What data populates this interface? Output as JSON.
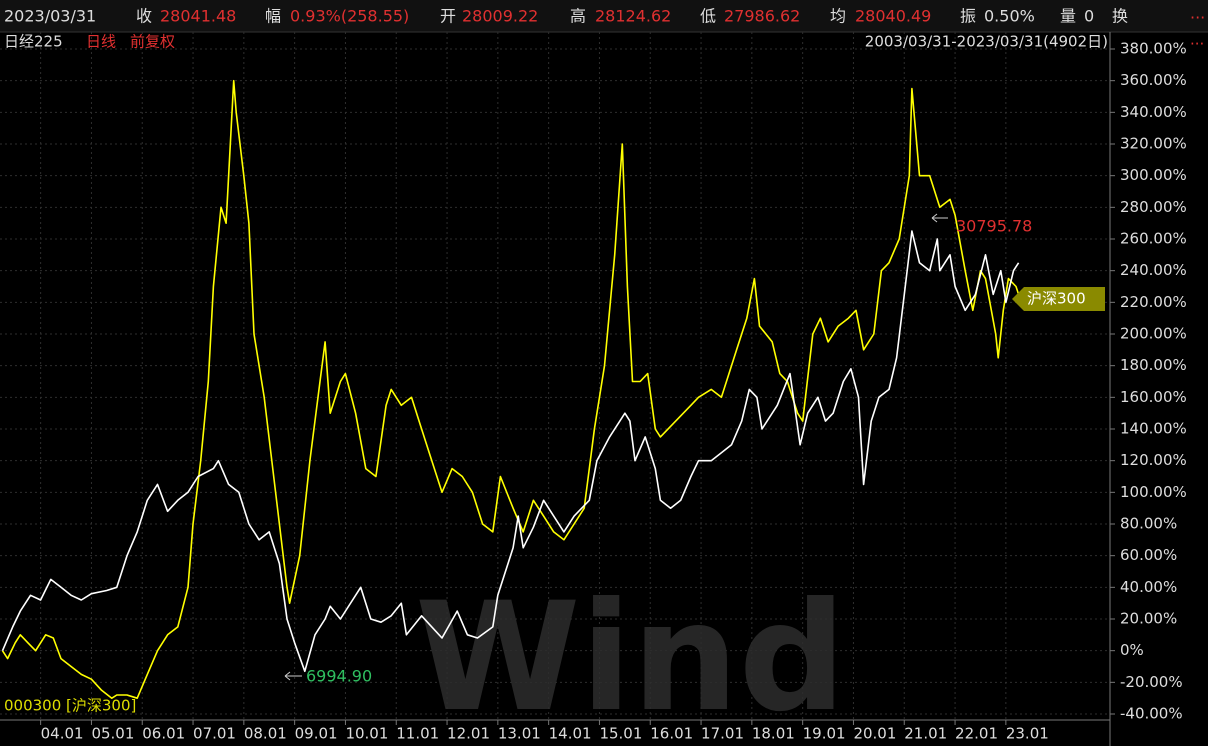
{
  "header": {
    "date": "2023/03/31",
    "fields": [
      {
        "name": "收",
        "value": "28041.48"
      },
      {
        "name": "幅",
        "value": "0.93%(258.55)"
      },
      {
        "name": "开",
        "value": "28009.22"
      },
      {
        "name": "高",
        "value": "28124.62"
      },
      {
        "name": "低",
        "value": "27986.62"
      },
      {
        "name": "均",
        "value": "28040.49"
      },
      {
        "name": "振",
        "value": "0.50%"
      },
      {
        "name": "量",
        "value": "0"
      },
      {
        "name": "换"
      }
    ],
    "more": "...",
    "instrument": "日经225",
    "period": "日线",
    "adjust": "前复权",
    "range": "2003/03/31-2023/03/31(4902日)"
  },
  "chart_data": {
    "type": "line",
    "compare_label": "000300 [沪深300]",
    "tag": "沪深300",
    "max_label": "30795.78",
    "min_label": "6994.90",
    "watermark": "Wind",
    "grid": true,
    "xlim": [
      2003.2,
      2025.05
    ],
    "xticks": [
      {
        "value": 2004,
        "label": "04.01"
      },
      {
        "value": 2005,
        "label": "05.01"
      },
      {
        "value": 2006,
        "label": "06.01"
      },
      {
        "value": 2007,
        "label": "07.01"
      },
      {
        "value": 2008,
        "label": "08.01"
      },
      {
        "value": 2009,
        "label": "09.01"
      },
      {
        "value": 2010,
        "label": "10.01"
      },
      {
        "value": 2011,
        "label": "11.01"
      },
      {
        "value": 2012,
        "label": "12.01"
      },
      {
        "value": 2013,
        "label": "13.01"
      },
      {
        "value": 2014,
        "label": "14.01"
      },
      {
        "value": 2015,
        "label": "15.01"
      },
      {
        "value": 2016,
        "label": "16.01"
      },
      {
        "value": 2017,
        "label": "17.01"
      },
      {
        "value": 2018,
        "label": "18.01"
      },
      {
        "value": 2019,
        "label": "19.01"
      },
      {
        "value": 2020,
        "label": "20.01"
      },
      {
        "value": 2021,
        "label": "21.01"
      },
      {
        "value": 2022,
        "label": "22.01"
      },
      {
        "value": 2023,
        "label": "23.01"
      }
    ],
    "ylim": [
      -40,
      380
    ],
    "yticks": [
      {
        "value": -40,
        "label": "-40.00%"
      },
      {
        "value": -20,
        "label": "-20.00%"
      },
      {
        "value": 0,
        "label": "0%"
      },
      {
        "value": 20,
        "label": "20.00%"
      },
      {
        "value": 40,
        "label": "40.00%"
      },
      {
        "value": 60,
        "label": "60.00%"
      },
      {
        "value": 80,
        "label": "80.00%"
      },
      {
        "value": 100,
        "label": "100.00%"
      },
      {
        "value": 120,
        "label": "120.00%"
      },
      {
        "value": 140,
        "label": "140.00%"
      },
      {
        "value": 160,
        "label": "160.00%"
      },
      {
        "value": 180,
        "label": "180.00%"
      },
      {
        "value": 200,
        "label": "200.00%"
      },
      {
        "value": 220,
        "label": "220.00%"
      },
      {
        "value": 240,
        "label": "240.00%"
      },
      {
        "value": 260,
        "label": "260.00%"
      },
      {
        "value": 280,
        "label": "280.00%"
      },
      {
        "value": 300,
        "label": "300.00%"
      },
      {
        "value": 320,
        "label": "320.00%"
      },
      {
        "value": 340,
        "label": "340.00%"
      },
      {
        "value": 360,
        "label": "360.00%"
      },
      {
        "value": 380,
        "label": "380.00%"
      }
    ],
    "series": [
      {
        "name": "日经225",
        "color": "#ffffff",
        "x": [
          2003.25,
          2003.45,
          2003.6,
          2003.8,
          2004.0,
          2004.2,
          2004.4,
          2004.6,
          2004.8,
          2005.0,
          2005.3,
          2005.5,
          2005.7,
          2005.9,
          2006.1,
          2006.3,
          2006.5,
          2006.7,
          2006.9,
          2007.1,
          2007.4,
          2007.5,
          2007.7,
          2007.9,
          2008.1,
          2008.3,
          2008.5,
          2008.7,
          2008.85,
          2009.0,
          2009.2,
          2009.4,
          2009.6,
          2009.7,
          2009.9,
          2010.2,
          2010.3,
          2010.5,
          2010.7,
          2010.9,
          2011.1,
          2011.2,
          2011.5,
          2011.7,
          2011.9,
          2012.2,
          2012.4,
          2012.6,
          2012.9,
          2013.0,
          2013.3,
          2013.4,
          2013.5,
          2013.7,
          2013.9,
          2014.1,
          2014.3,
          2014.5,
          2014.8,
          2014.95,
          2015.2,
          2015.5,
          2015.6,
          2015.7,
          2015.9,
          2016.1,
          2016.2,
          2016.4,
          2016.6,
          2016.8,
          2016.95,
          2017.2,
          2017.4,
          2017.6,
          2017.8,
          2017.95,
          2018.1,
          2018.2,
          2018.5,
          2018.75,
          2018.95,
          2019.1,
          2019.3,
          2019.45,
          2019.6,
          2019.8,
          2019.95,
          2020.1,
          2020.2,
          2020.35,
          2020.5,
          2020.7,
          2020.85,
          2021.0,
          2021.15,
          2021.3,
          2021.5,
          2021.65,
          2021.7,
          2021.9,
          2022.0,
          2022.2,
          2022.4,
          2022.6,
          2022.75,
          2022.9,
          2023.0,
          2023.15,
          2023.25
        ],
        "values": [
          0,
          15,
          25,
          35,
          32,
          45,
          40,
          35,
          32,
          36,
          38,
          40,
          60,
          75,
          95,
          105,
          88,
          95,
          100,
          110,
          115,
          120,
          105,
          100,
          80,
          70,
          75,
          55,
          20,
          5,
          -13,
          10,
          20,
          28,
          20,
          35,
          40,
          20,
          18,
          22,
          30,
          10,
          22,
          15,
          8,
          25,
          10,
          8,
          15,
          35,
          65,
          85,
          65,
          78,
          95,
          85,
          75,
          85,
          95,
          120,
          135,
          150,
          145,
          120,
          135,
          115,
          95,
          90,
          95,
          110,
          120,
          120,
          125,
          130,
          145,
          165,
          160,
          140,
          155,
          175,
          130,
          150,
          160,
          145,
          150,
          170,
          178,
          160,
          105,
          145,
          160,
          165,
          185,
          225,
          265,
          245,
          240,
          260,
          240,
          250,
          230,
          215,
          225,
          250,
          225,
          240,
          220,
          240,
          245
        ]
      },
      {
        "name": "沪深300",
        "color": "#ffff00",
        "x": [
          2003.25,
          2003.35,
          2003.5,
          2003.6,
          2003.75,
          2003.9,
          2004.1,
          2004.25,
          2004.4,
          2004.6,
          2004.8,
          2005.0,
          2005.2,
          2005.4,
          2005.5,
          2005.7,
          2005.9,
          2006.1,
          2006.3,
          2006.5,
          2006.7,
          2006.9,
          2007.0,
          2007.15,
          2007.3,
          2007.4,
          2007.55,
          2007.65,
          2007.8,
          2007.85,
          2008.0,
          2008.1,
          2008.2,
          2008.4,
          2008.55,
          2008.7,
          2008.85,
          2008.9,
          2009.1,
          2009.3,
          2009.5,
          2009.6,
          2009.7,
          2009.9,
          2010.0,
          2010.2,
          2010.4,
          2010.6,
          2010.8,
          2010.9,
          2011.1,
          2011.3,
          2011.5,
          2011.7,
          2011.9,
          2012.1,
          2012.3,
          2012.5,
          2012.7,
          2012.9,
          2013.05,
          2013.3,
          2013.5,
          2013.7,
          2013.9,
          2014.1,
          2014.3,
          2014.5,
          2014.7,
          2014.9,
          2015.1,
          2015.3,
          2015.45,
          2015.55,
          2015.65,
          2015.8,
          2015.95,
          2016.1,
          2016.2,
          2016.5,
          2016.8,
          2016.95,
          2017.2,
          2017.4,
          2017.7,
          2017.9,
          2018.05,
          2018.15,
          2018.4,
          2018.55,
          2018.7,
          2018.9,
          2019.0,
          2019.2,
          2019.35,
          2019.5,
          2019.7,
          2019.9,
          2020.05,
          2020.2,
          2020.4,
          2020.55,
          2020.7,
          2020.9,
          2021.1,
          2021.15,
          2021.3,
          2021.5,
          2021.7,
          2021.9,
          2022.0,
          2022.2,
          2022.35,
          2022.5,
          2022.6,
          2022.8,
          2022.85,
          2022.95,
          2023.05,
          2023.2,
          2023.25
        ],
        "values": [
          0,
          -5,
          5,
          10,
          5,
          0,
          10,
          8,
          -5,
          -10,
          -15,
          -18,
          -25,
          -30,
          -28,
          -28,
          -30,
          -15,
          0,
          10,
          15,
          40,
          80,
          120,
          170,
          230,
          280,
          270,
          360,
          340,
          300,
          270,
          200,
          160,
          120,
          80,
          40,
          30,
          60,
          120,
          170,
          195,
          150,
          170,
          175,
          150,
          115,
          110,
          155,
          165,
          155,
          160,
          140,
          120,
          100,
          115,
          110,
          100,
          80,
          75,
          110,
          90,
          75,
          95,
          85,
          75,
          70,
          80,
          90,
          140,
          180,
          250,
          320,
          230,
          170,
          170,
          175,
          140,
          135,
          145,
          155,
          160,
          165,
          160,
          190,
          210,
          235,
          205,
          195,
          175,
          170,
          150,
          145,
          200,
          210,
          195,
          205,
          210,
          215,
          190,
          200,
          240,
          245,
          260,
          300,
          355,
          300,
          300,
          280,
          285,
          275,
          240,
          215,
          240,
          235,
          200,
          185,
          215,
          235,
          230,
          225
        ]
      }
    ]
  }
}
